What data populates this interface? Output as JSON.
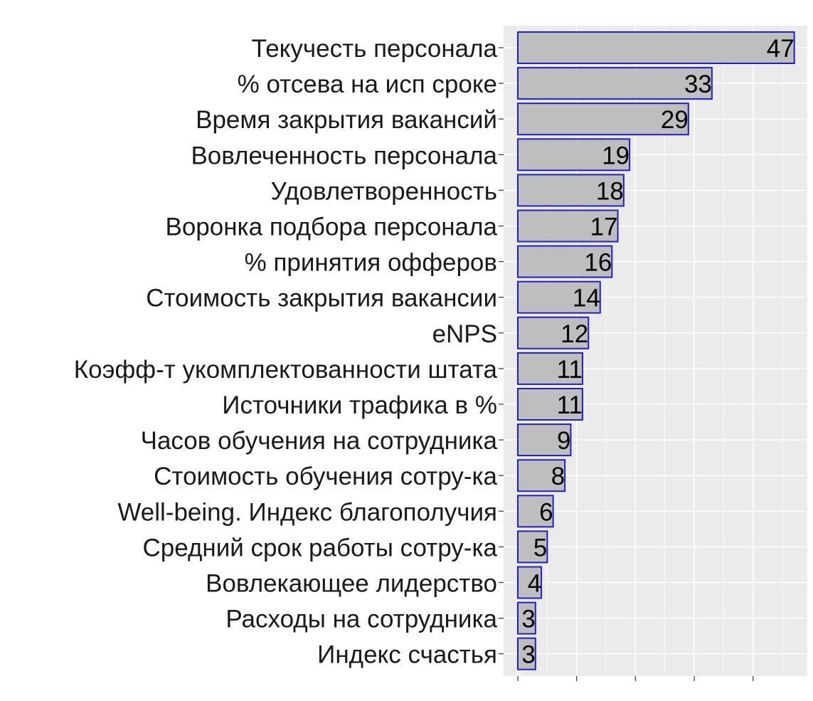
{
  "chart_data": {
    "type": "bar",
    "orientation": "horizontal",
    "title": "",
    "xlabel": "",
    "ylabel": "",
    "xlim": [
      0,
      49.5
    ],
    "grid": true,
    "legend": "none",
    "categories": [
      "Текучесть персонала",
      "% отсева на исп сроке",
      "Время закрытия вакансий",
      "Вовлеченность персонала",
      "Удовлетворенность",
      "Воронка подбора персонала",
      "% принятия офферов",
      "Стоимость закрытия вакансии",
      "eNPS",
      "Коэфф-т укомплектованности штата",
      "Источники трафика в %",
      "Часов обучения на сотрудника",
      "Стоимость обучения сотру-ка",
      "Well-being. Индекс благополучия",
      "Средний срок работы сотру-ка",
      "Вовлекающее лидерство",
      "Расходы на сотрудника",
      "Индекс счастья"
    ],
    "values": [
      47,
      33,
      29,
      19,
      18,
      17,
      16,
      14,
      12,
      11,
      11,
      9,
      8,
      6,
      5,
      4,
      3,
      3
    ],
    "data_labels": [
      "47",
      "33",
      "29",
      "19",
      "18",
      "17",
      "16",
      "14",
      "12",
      "11",
      "11",
      "9",
      "8",
      "6",
      "5",
      "4",
      "3",
      "3"
    ],
    "colors": {
      "bar_fill": "#bebebe",
      "bar_stroke": "#1f1fcc",
      "panel_background": "#ebebeb",
      "grid": "#ffffff",
      "axis_tick": "#333333"
    }
  }
}
